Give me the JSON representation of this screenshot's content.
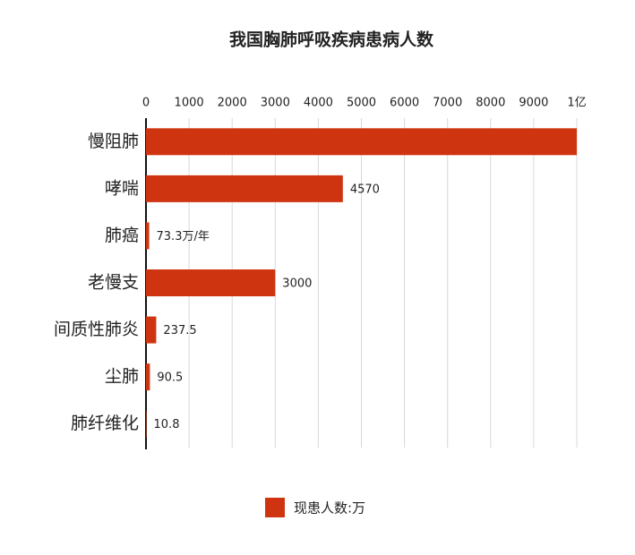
{
  "chart_data": {
    "type": "hbar",
    "title": "我国胸肺呼吸疾病患病人数",
    "categories": [
      "慢阻肺",
      "哮喘",
      "肺癌",
      "老慢支",
      "间质性肺炎",
      "尘肺",
      "肺纤维化"
    ],
    "series": [
      {
        "name": "现患人数:万",
        "color": "#cf3410",
        "values": [
          10000,
          4570,
          73.3,
          3000,
          237.5,
          90.5,
          10.8
        ],
        "value_labels": [
          null,
          "4570",
          "73.3万/年",
          "3000",
          "237.5",
          "90.5",
          "10.8"
        ]
      }
    ],
    "xlim": [
      0,
      10000
    ],
    "xticks": [
      0,
      1000,
      2000,
      3000,
      4000,
      5000,
      6000,
      7000,
      8000,
      9000,
      {
        "value": 10000,
        "label": "1亿"
      }
    ],
    "grid": true,
    "legend": "bottom"
  }
}
